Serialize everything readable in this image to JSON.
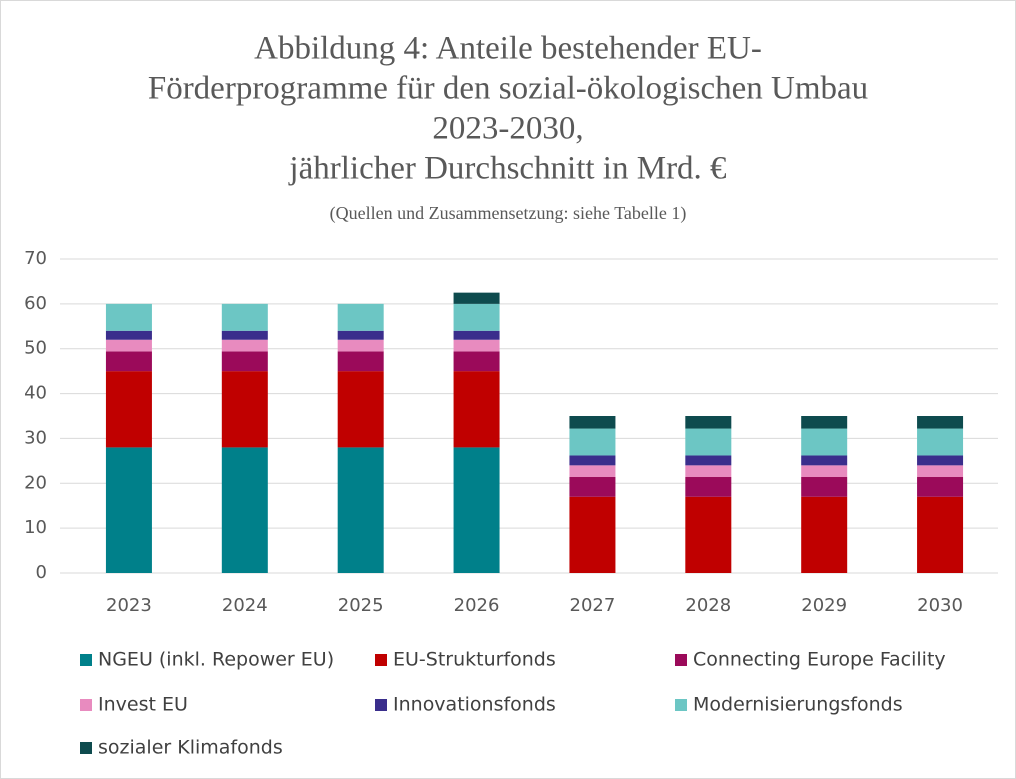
{
  "chart_data": {
    "type": "stacked_bar",
    "title": [
      "Abbildung 4: Anteile bestehender EU-",
      "Förderprogramme für den sozial-ökologischen Umbau",
      "2023-2030,",
      "jährlicher Durchschnitt in Mrd. €"
    ],
    "subtitle": "(Quellen und Zusammensetzung: siehe Tabelle 1)",
    "categories": [
      "2023",
      "2024",
      "2025",
      "2026",
      "2027",
      "2028",
      "2029",
      "2030"
    ],
    "series": [
      {
        "name": "NGEU (inkl. Repower EU)",
        "color": "#00808a",
        "values": [
          28,
          28,
          28,
          28,
          0,
          0,
          0,
          0
        ]
      },
      {
        "name": "EU-Strukturfonds",
        "color": "#c00000",
        "values": [
          17,
          17,
          17,
          17,
          17,
          17,
          17,
          17
        ]
      },
      {
        "name": "Connecting Europe Facility",
        "color": "#9b0a5a",
        "values": [
          4.4,
          4.4,
          4.4,
          4.4,
          4.4,
          4.4,
          4.4,
          4.4
        ]
      },
      {
        "name": "Invest EU",
        "color": "#e88bbf",
        "values": [
          2.6,
          2.6,
          2.6,
          2.6,
          2.6,
          2.6,
          2.6,
          2.6
        ]
      },
      {
        "name": "Innovationsfonds",
        "color": "#3a2e8c",
        "values": [
          2,
          2,
          2,
          2,
          2.2,
          2.2,
          2.2,
          2.2
        ]
      },
      {
        "name": "Modernisierungsfonds",
        "color": "#6cc6c4",
        "values": [
          6,
          6,
          6,
          6,
          6,
          6,
          6,
          6
        ]
      },
      {
        "name": "sozialer Klimafonds",
        "color": "#0e4b4e",
        "values": [
          0,
          0,
          0,
          2.5,
          2.8,
          2.8,
          2.8,
          2.8
        ]
      }
    ],
    "ylim": [
      0,
      70
    ],
    "yticks": [
      0,
      10,
      20,
      30,
      40,
      50,
      60,
      70
    ],
    "grid": true,
    "legend": "bottom"
  }
}
